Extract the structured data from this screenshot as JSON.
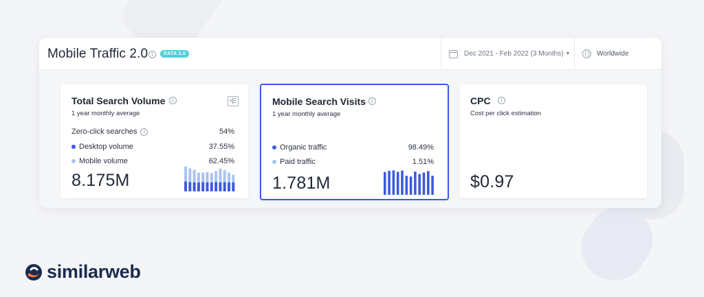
{
  "header": {
    "title": "Mobile Traffic 2.0",
    "badge": "DATA 2.0",
    "date_range": "Dec 2021 - Feb 2022 (3 Months)",
    "country": "Worldwide"
  },
  "colors": {
    "desktop": "#3d5adf",
    "mobile": "#a9c4f2",
    "selected_border": "#3d5adf",
    "badge": "#4fd1d9"
  },
  "cards": {
    "total_search_volume": {
      "title": "Total Search Volume",
      "subtitle": "1 year monthly average",
      "rows": [
        {
          "label": "Zero-click searches",
          "value": "54%"
        },
        {
          "label": "Desktop volume",
          "value": "37.55%"
        },
        {
          "label": "Mobile volume",
          "value": "62.45%"
        }
      ],
      "big_value": "8.175M",
      "stacked_bars": [
        {
          "desktop": 0.4,
          "mobile": 0.6
        },
        {
          "desktop": 0.38,
          "mobile": 0.55
        },
        {
          "desktop": 0.37,
          "mobile": 0.5
        },
        {
          "desktop": 0.36,
          "mobile": 0.4
        },
        {
          "desktop": 0.38,
          "mobile": 0.38
        },
        {
          "desktop": 0.37,
          "mobile": 0.41
        },
        {
          "desktop": 0.36,
          "mobile": 0.38
        },
        {
          "desktop": 0.38,
          "mobile": 0.44
        },
        {
          "desktop": 0.37,
          "mobile": 0.55
        },
        {
          "desktop": 0.38,
          "mobile": 0.48
        },
        {
          "desktop": 0.36,
          "mobile": 0.4
        },
        {
          "desktop": 0.37,
          "mobile": 0.3
        }
      ]
    },
    "mobile_search_visits": {
      "title": "Mobile Search Visits",
      "subtitle": "1 year monthly average",
      "rows": [
        {
          "label": "Organic traffic",
          "value": "98.49%"
        },
        {
          "label": "Paid traffic",
          "value": "1.51%"
        }
      ],
      "big_value": "1.781M",
      "bars": [
        0.92,
        0.97,
        0.99,
        0.93,
        0.98,
        0.77,
        0.74,
        0.94,
        0.84,
        0.9,
        0.96,
        0.77
      ]
    },
    "cpc": {
      "title": "CPC",
      "subtitle": "Cost per click estimation",
      "big_value": "$0.97"
    }
  },
  "brand": {
    "name": "similarweb"
  }
}
